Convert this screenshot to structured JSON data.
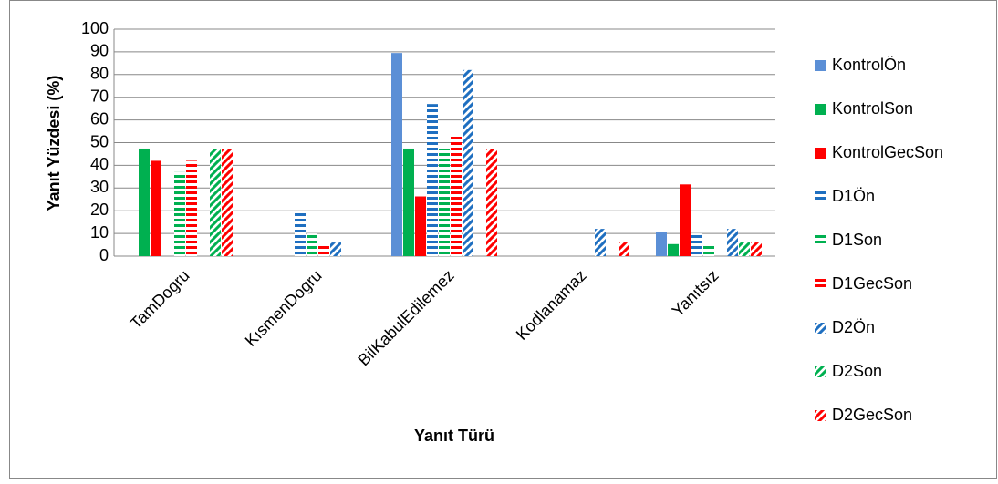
{
  "chart_data": {
    "type": "bar",
    "ylabel": "Yanıt Yüzdesi (%)",
    "xlabel": "Yanıt Türü",
    "categories": [
      "TamDogru",
      "KısmenDogru",
      "BilKabulEdilemez",
      "Kodlanamaz",
      "Yanıtsız"
    ],
    "ylim": [
      0,
      100
    ],
    "yticks": [
      0,
      10,
      20,
      30,
      40,
      50,
      60,
      70,
      80,
      90,
      100
    ],
    "grid": true,
    "series": [
      {
        "name": "KontrolÖn",
        "color": "#5b8fd6",
        "fill": "solid",
        "values": [
          0,
          0,
          89.5,
          0,
          10.5
        ]
      },
      {
        "name": "KontrolSon",
        "color": "#00b050",
        "fill": "solid",
        "values": [
          47.4,
          0,
          47.4,
          0,
          5.3
        ]
      },
      {
        "name": "KontrolGecSon",
        "color": "#ff0000",
        "fill": "solid",
        "values": [
          42,
          0,
          26.3,
          0,
          31.6
        ]
      },
      {
        "name": "D1Ön",
        "color": "#1f6fc0",
        "fill": "horizontal",
        "values": [
          0,
          20,
          67,
          0,
          10
        ]
      },
      {
        "name": "D1Son",
        "color": "#00b050",
        "fill": "horizontal",
        "values": [
          37,
          10,
          47,
          0,
          5
        ]
      },
      {
        "name": "D1GecSon",
        "color": "#ff0000",
        "fill": "horizontal",
        "values": [
          42,
          5,
          53,
          0,
          0
        ]
      },
      {
        "name": "D2Ön",
        "color": "#1f6fc0",
        "fill": "diagonal",
        "values": [
          0,
          6,
          82,
          12,
          12
        ]
      },
      {
        "name": "D2Son",
        "color": "#00b050",
        "fill": "diagonal",
        "values": [
          47,
          0,
          0,
          0,
          6
        ]
      },
      {
        "name": "D2GecSon",
        "color": "#ff0000",
        "fill": "diagonal",
        "values": [
          47,
          0,
          47,
          6,
          6
        ]
      }
    ]
  }
}
